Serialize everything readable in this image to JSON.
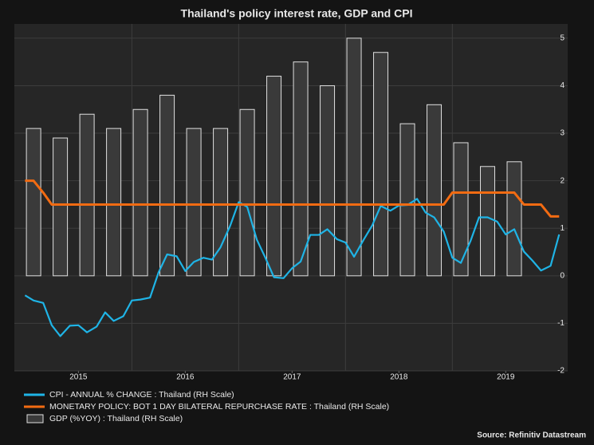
{
  "chart_data": {
    "type": "combo",
    "title": "Thailand's policy interest rate, GDP and CPI",
    "source": "Source: Refinitiv Datastream",
    "xlim": [
      2014.9,
      2020.08
    ],
    "xticks": [
      {
        "value": 2015.5,
        "label": "2015"
      },
      {
        "value": 2016.5,
        "label": "2016"
      },
      {
        "value": 2017.5,
        "label": "2017"
      },
      {
        "value": 2018.5,
        "label": "2018"
      },
      {
        "value": 2019.5,
        "label": "2019"
      }
    ],
    "ylim": [
      -2,
      5.3
    ],
    "yticks": [
      -2,
      -1,
      0,
      1,
      2,
      3,
      4,
      5
    ],
    "grid": true,
    "series": [
      {
        "name": "CPI - ANNUAL % CHANGE : Thailand (RH Scale)",
        "type": "line",
        "color": "#1fb4e6",
        "x": [
          2015,
          2015.08,
          2015.17,
          2015.25,
          2015.33,
          2015.42,
          2015.5,
          2015.58,
          2015.67,
          2015.75,
          2015.83,
          2015.92,
          2016,
          2016.08,
          2016.17,
          2016.25,
          2016.33,
          2016.42,
          2016.5,
          2016.58,
          2016.67,
          2016.75,
          2016.83,
          2016.92,
          2017,
          2017.08,
          2017.17,
          2017.25,
          2017.33,
          2017.42,
          2017.5,
          2017.58,
          2017.67,
          2017.75,
          2017.83,
          2017.92,
          2018,
          2018.08,
          2018.17,
          2018.25,
          2018.33,
          2018.42,
          2018.5,
          2018.58,
          2018.67,
          2018.75,
          2018.83,
          2018.92,
          2019,
          2019.08,
          2019.17,
          2019.25,
          2019.33,
          2019.42,
          2019.5,
          2019.58,
          2019.67,
          2019.75,
          2019.83,
          2019.92,
          2020
        ],
        "values": [
          -0.41,
          -0.52,
          -0.57,
          -1.04,
          -1.27,
          -1.05,
          -1.04,
          -1.19,
          -1.07,
          -0.77,
          -0.95,
          -0.85,
          -0.52,
          -0.5,
          -0.46,
          0.07,
          0.45,
          0.41,
          0.1,
          0.29,
          0.38,
          0.34,
          0.6,
          1.05,
          1.55,
          1.45,
          0.76,
          0.38,
          -0.03,
          -0.05,
          0.16,
          0.3,
          0.86,
          0.86,
          0.98,
          0.77,
          0.7,
          0.4,
          0.76,
          1.06,
          1.47,
          1.37,
          1.48,
          1.49,
          1.62,
          1.33,
          1.23,
          0.93,
          0.38,
          0.27,
          0.73,
          1.23,
          1.23,
          1.14,
          0.87,
          0.98,
          0.51,
          0.32,
          0.11,
          0.21,
          0.87
        ]
      },
      {
        "name": "MONETARY POLICY: BOT 1 DAY BILATERAL REPURCHASE RATE : Thailand (RH Scale)",
        "type": "line",
        "color": "#f26b12",
        "x": [
          2015,
          2015.08,
          2015.17,
          2015.25,
          2015.33,
          2015.42,
          2015.5,
          2015.58,
          2015.67,
          2015.75,
          2015.83,
          2015.92,
          2016,
          2016.08,
          2016.17,
          2016.25,
          2016.33,
          2016.42,
          2016.5,
          2016.58,
          2016.67,
          2016.75,
          2016.83,
          2016.92,
          2017,
          2017.08,
          2017.17,
          2017.25,
          2017.33,
          2017.42,
          2017.5,
          2017.58,
          2017.67,
          2017.75,
          2017.83,
          2017.92,
          2018,
          2018.08,
          2018.17,
          2018.25,
          2018.33,
          2018.42,
          2018.5,
          2018.58,
          2018.67,
          2018.75,
          2018.83,
          2018.92,
          2019,
          2019.08,
          2019.17,
          2019.25,
          2019.33,
          2019.42,
          2019.5,
          2019.58,
          2019.67,
          2019.75,
          2019.83,
          2019.92,
          2020
        ],
        "values": [
          2,
          2,
          1.75,
          1.5,
          1.5,
          1.5,
          1.5,
          1.5,
          1.5,
          1.5,
          1.5,
          1.5,
          1.5,
          1.5,
          1.5,
          1.5,
          1.5,
          1.5,
          1.5,
          1.5,
          1.5,
          1.5,
          1.5,
          1.5,
          1.5,
          1.5,
          1.5,
          1.5,
          1.5,
          1.5,
          1.5,
          1.5,
          1.5,
          1.5,
          1.5,
          1.5,
          1.5,
          1.5,
          1.5,
          1.5,
          1.5,
          1.5,
          1.5,
          1.5,
          1.5,
          1.5,
          1.5,
          1.5,
          1.75,
          1.75,
          1.75,
          1.75,
          1.75,
          1.75,
          1.75,
          1.75,
          1.5,
          1.5,
          1.5,
          1.25,
          1.25
        ]
      },
      {
        "name": "GDP (%YOY) : Thailand (RH Scale)",
        "type": "bar",
        "color": "#3a3a3a",
        "x": [
          2015.08,
          2015.33,
          2015.58,
          2015.83,
          2016.08,
          2016.33,
          2016.58,
          2016.83,
          2017.08,
          2017.33,
          2017.58,
          2017.83,
          2018.08,
          2018.33,
          2018.58,
          2018.83,
          2019.08,
          2019.33,
          2019.58
        ],
        "values": [
          3.1,
          2.9,
          3.4,
          3.1,
          3.5,
          3.8,
          3.1,
          3.1,
          3.5,
          4.2,
          4.5,
          4,
          5,
          4.7,
          3.2,
          3.6,
          2.8,
          2.3,
          2.4
        ]
      }
    ]
  }
}
